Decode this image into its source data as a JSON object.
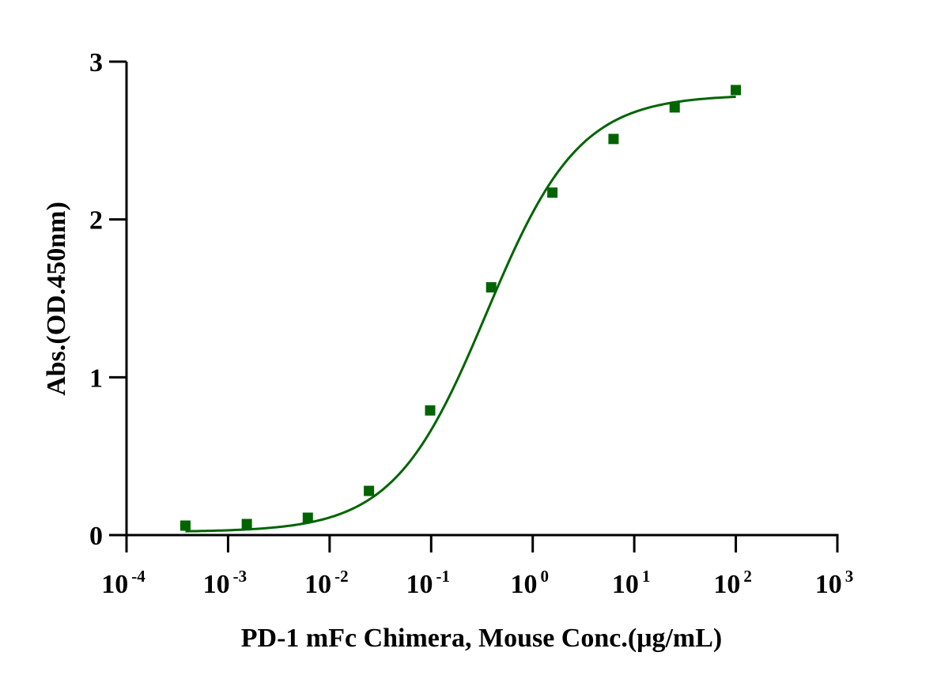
{
  "chart_data": {
    "type": "scatter",
    "title": "",
    "xlabel": "PD-1 mFc Chimera, Mouse Conc.(μg/mL)",
    "ylabel": "Abs.(OD.450nm)",
    "xscale": "log",
    "xlim": [
      0.0001,
      1000
    ],
    "ylim": [
      0,
      3
    ],
    "x_ticks": [
      {
        "base": "10",
        "exp": "-4",
        "value": 0.0001
      },
      {
        "base": "10",
        "exp": "-3",
        "value": 0.001
      },
      {
        "base": "10",
        "exp": "-2",
        "value": 0.01
      },
      {
        "base": "10",
        "exp": "-1",
        "value": 0.1
      },
      {
        "base": "10",
        "exp": "0",
        "value": 1
      },
      {
        "base": "10",
        "exp": "1",
        "value": 10
      },
      {
        "base": "10",
        "exp": "2",
        "value": 100
      },
      {
        "base": "10",
        "exp": "3",
        "value": 1000
      }
    ],
    "y_ticks": [
      {
        "label": "0",
        "value": 0
      },
      {
        "label": "1",
        "value": 1
      },
      {
        "label": "2",
        "value": 2
      },
      {
        "label": "3",
        "value": 3
      }
    ],
    "grid": false,
    "legend": "none",
    "series": [
      {
        "name": "PD-1 mFc Chimera, Mouse",
        "marker": "square",
        "color": "#006400",
        "x": [
          0.00038,
          0.00153,
          0.0061,
          0.0244,
          0.0977,
          0.39,
          1.5625,
          6.25,
          25,
          100
        ],
        "y": [
          0.06,
          0.07,
          0.11,
          0.28,
          0.79,
          1.57,
          2.17,
          2.51,
          2.71,
          2.82
        ]
      }
    ],
    "fit": {
      "type": "4PL",
      "color": "#006400",
      "bottom": 0.02,
      "top": 2.79,
      "ec50": 0.35,
      "hill": 0.95,
      "x_range": [
        0.00038,
        100
      ]
    }
  }
}
